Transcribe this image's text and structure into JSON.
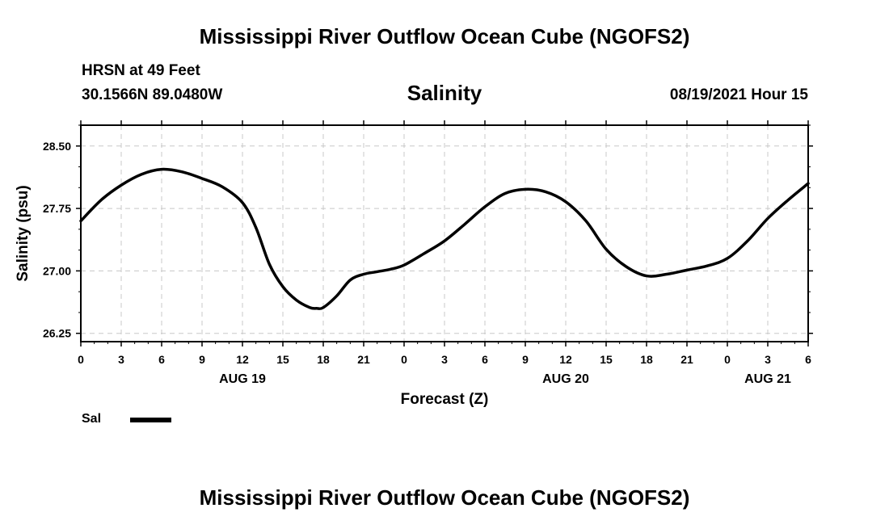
{
  "header": {
    "title": "Mississippi River Outflow Ocean Cube (NGOFS2)",
    "station": "HRSN at 49 Feet",
    "coords": "30.1566N  89.0480W",
    "variable": "Salinity",
    "datetime": "08/19/2021 Hour 15"
  },
  "footer": {
    "title": "Mississippi River Outflow Ocean Cube (NGOFS2)"
  },
  "legend": {
    "label": "Sal",
    "color": "#000000"
  },
  "chart_data": {
    "type": "line",
    "title": "Salinity",
    "xlabel": "Forecast (Z)",
    "ylabel": "Salinity (psu)",
    "x_unit": "hours since 08/19/2021 00Z",
    "xlim": [
      0,
      54
    ],
    "ylim": [
      26.15,
      28.75
    ],
    "grid": true,
    "x_ticks": [
      0,
      3,
      6,
      9,
      12,
      15,
      18,
      21,
      24,
      27,
      30,
      33,
      36,
      39,
      42,
      45,
      48,
      51,
      54
    ],
    "x_tick_labels": [
      "0",
      "3",
      "6",
      "9",
      "12",
      "15",
      "18",
      "21",
      "0",
      "3",
      "6",
      "9",
      "12",
      "15",
      "18",
      "21",
      "0",
      "3",
      "6"
    ],
    "date_labels": [
      {
        "x": 12,
        "label": "AUG 19"
      },
      {
        "x": 36,
        "label": "AUG 20"
      },
      {
        "x": 51,
        "label": "AUG 21"
      }
    ],
    "y_ticks": [
      26.25,
      27.0,
      27.75,
      28.5
    ],
    "y_tick_labels": [
      "26.25",
      "27.00",
      "27.75",
      "28.50"
    ],
    "series": [
      {
        "name": "Sal",
        "color": "#000000",
        "x": [
          0,
          1.5,
          3,
          4.5,
          6,
          7.5,
          9,
          10.5,
          12,
          13,
          14,
          15,
          16,
          17,
          17.5,
          18,
          19,
          20,
          21,
          22,
          23,
          24,
          25.5,
          27,
          28.5,
          30,
          31.5,
          33,
          34.5,
          36,
          37.5,
          39,
          40.5,
          42,
          43.5,
          45,
          46.5,
          48,
          49.5,
          51,
          52.5,
          54
        ],
        "values": [
          27.6,
          27.85,
          28.03,
          28.16,
          28.22,
          28.19,
          28.11,
          28.01,
          27.82,
          27.52,
          27.08,
          26.81,
          26.65,
          26.56,
          26.55,
          26.56,
          26.7,
          26.89,
          26.96,
          26.99,
          27.02,
          27.07,
          27.21,
          27.36,
          27.56,
          27.77,
          27.93,
          27.98,
          27.95,
          27.83,
          27.6,
          27.26,
          27.05,
          26.94,
          26.96,
          27.01,
          27.06,
          27.15,
          27.36,
          27.63,
          27.85,
          28.05
        ]
      }
    ]
  }
}
